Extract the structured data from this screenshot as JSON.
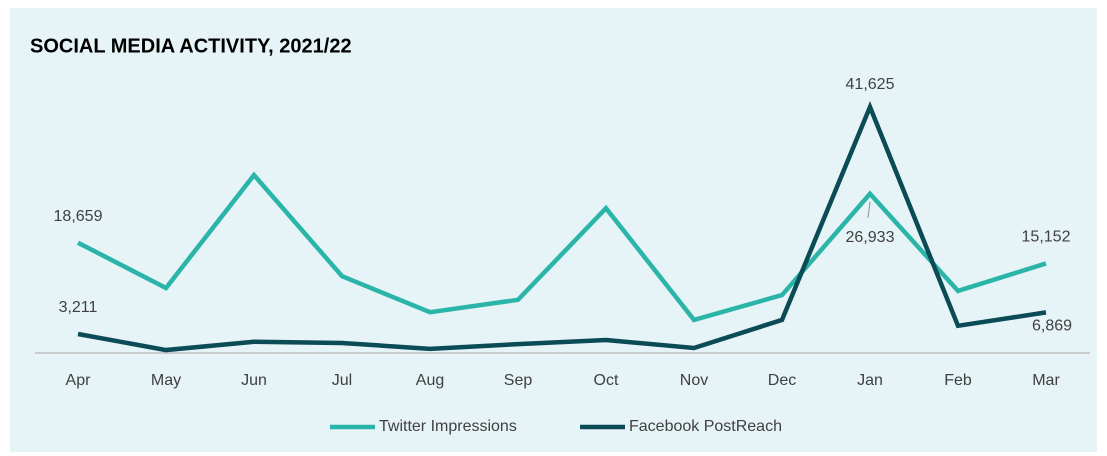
{
  "chart_data": {
    "type": "line",
    "title": "SOCIAL MEDIA ACTIVITY, 2021/22",
    "categories": [
      "Apr",
      "May",
      "Jun",
      "Jul",
      "Aug",
      "Sep",
      "Oct",
      "Nov",
      "Dec",
      "Jan",
      "Feb",
      "Mar"
    ],
    "ylim": [
      0,
      45000
    ],
    "series": [
      {
        "name": "Twitter Impressions",
        "color": "#2bb5a8",
        "values": [
          18659,
          11000,
          30100,
          13000,
          6900,
          9000,
          24500,
          5600,
          9800,
          26933,
          10500,
          15152
        ],
        "value_labels": [
          "18,659",
          null,
          null,
          null,
          null,
          null,
          null,
          null,
          null,
          "26,933",
          null,
          "15,152"
        ]
      },
      {
        "name": "Facebook PostReach",
        "color": "#0b4b55",
        "values": [
          3211,
          500,
          1900,
          1700,
          700,
          1500,
          2200,
          850,
          5600,
          41625,
          4600,
          6869
        ],
        "value_labels": [
          "3,211",
          null,
          null,
          null,
          null,
          null,
          null,
          null,
          null,
          "41,625",
          null,
          "6,869"
        ]
      }
    ],
    "legend": "bottom"
  }
}
